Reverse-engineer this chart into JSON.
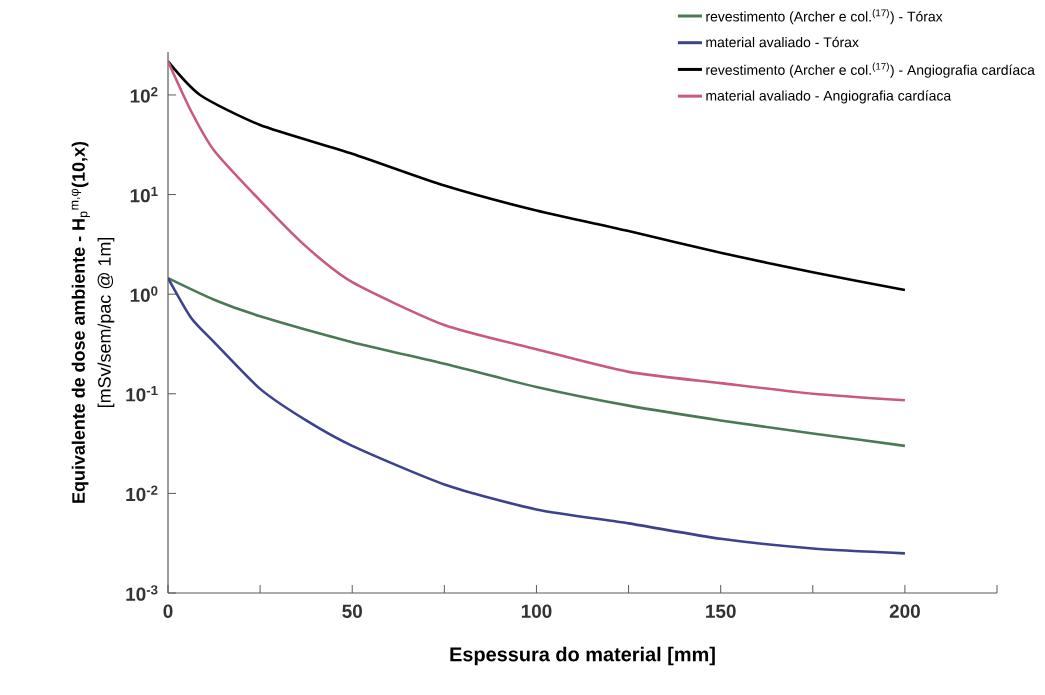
{
  "chart_data": {
    "type": "line",
    "xlabel": "Espessura do material [mm]",
    "ylabel": "**Equivalente de dose ambiente - H**$_{p}$$^{m,φ}$**(10,x)** [mSv/sem/pac @ 1m]",
    "xlim": [
      0,
      225
    ],
    "xticks": [
      0,
      {
        "value": 25,
        "label": null
      },
      50,
      {
        "value": 75,
        "label": null
      },
      100,
      {
        "value": 125,
        "label": null
      },
      150,
      {
        "value": 175,
        "label": null
      },
      200,
      {
        "value": 225,
        "label": null
      }
    ],
    "ylim": [
      0.001,
      270
    ],
    "yticks": [
      {
        "value": 0.001,
        "label": "10$^{-3}$"
      },
      {
        "value": 0.01,
        "label": "10$^{-2}$"
      },
      {
        "value": 0.1,
        "label": "10$^{-1}$"
      },
      {
        "value": 1,
        "label": "10$^{0}$"
      },
      {
        "value": 10,
        "label": "10$^{1}$"
      },
      {
        "value": 100,
        "label": "10$^{2}$"
      }
    ],
    "log": "y",
    "legend": "top right",
    "line_style": "solid",
    "series": [
      {
        "name": "revestimento (Archer e col.$^{(17)}$) - Tórax",
        "color": "#4a7a55",
        "x": [
          0,
          12.5,
          25,
          50,
          75,
          100,
          125,
          150,
          175,
          200
        ],
        "values": [
          1.45,
          0.88,
          0.6,
          0.33,
          0.2,
          0.117,
          0.076,
          0.054,
          0.04,
          0.03
        ]
      },
      {
        "name": "material avaliado - Tórax",
        "color": "#3c428c",
        "x": [
          0,
          6.25,
          12.5,
          25,
          37.5,
          50,
          75,
          100,
          125,
          150,
          175,
          200
        ],
        "values": [
          1.45,
          0.58,
          0.33,
          0.112,
          0.054,
          0.03,
          0.0123,
          0.0069,
          0.005,
          0.0035,
          0.0028,
          0.0025
        ]
      },
      {
        "name": "revestimento (Archer e col.$^{(17)}$) - Angiografia cardíaca",
        "color": "#000000",
        "x": [
          0,
          8.7,
          25,
          50,
          75,
          100,
          125,
          150,
          175,
          200
        ],
        "values": [
          217,
          100,
          50,
          25.7,
          12.3,
          6.9,
          4.3,
          2.6,
          1.66,
          1.1
        ]
      },
      {
        "name": "material avaliado - Angiografia cardíaca",
        "color": "#c85a7a",
        "x": [
          0,
          6.25,
          12.5,
          25,
          37.5,
          50,
          75,
          100,
          125,
          150,
          175,
          200
        ],
        "values": [
          217,
          69,
          27.7,
          8.7,
          3.0,
          1.32,
          0.49,
          0.28,
          0.166,
          0.128,
          0.1,
          0.086
        ]
      }
    ]
  }
}
